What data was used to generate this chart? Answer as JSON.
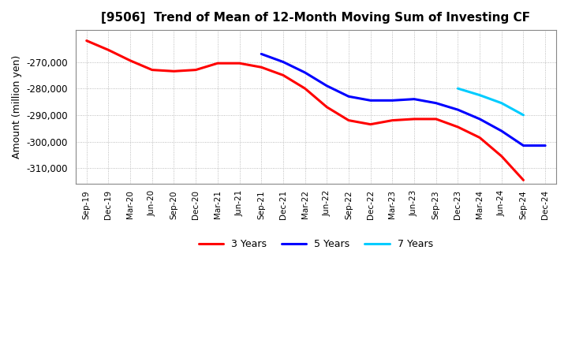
{
  "title": "[9506]  Trend of Mean of 12-Month Moving Sum of Investing CF",
  "ylabel": "Amount (million yen)",
  "background_color": "#ffffff",
  "plot_bg_color": "#ffffff",
  "grid_color": "#aaaaaa",
  "ylim": [
    -316000,
    -258000
  ],
  "yticks": [
    -310000,
    -300000,
    -290000,
    -280000,
    -270000
  ],
  "x_labels": [
    "Sep-19",
    "Dec-19",
    "Mar-20",
    "Jun-20",
    "Sep-20",
    "Dec-20",
    "Mar-21",
    "Jun-21",
    "Sep-21",
    "Dec-21",
    "Mar-22",
    "Jun-22",
    "Sep-22",
    "Dec-22",
    "Mar-23",
    "Jun-23",
    "Sep-23",
    "Dec-23",
    "Mar-24",
    "Jun-24",
    "Sep-24",
    "Dec-24"
  ],
  "series": {
    "3 Years": {
      "color": "#ff0000",
      "data": [
        [
          "Sep-19",
          -262000
        ],
        [
          "Dec-19",
          -265500
        ],
        [
          "Mar-20",
          -269500
        ],
        [
          "Jun-20",
          -273000
        ],
        [
          "Sep-20",
          -273500
        ],
        [
          "Dec-20",
          -273000
        ],
        [
          "Mar-21",
          -270500
        ],
        [
          "Jun-21",
          -270500
        ],
        [
          "Sep-21",
          -272000
        ],
        [
          "Dec-21",
          -275000
        ],
        [
          "Mar-22",
          -280000
        ],
        [
          "Jun-22",
          -287000
        ],
        [
          "Sep-22",
          -292000
        ],
        [
          "Dec-22",
          -293500
        ],
        [
          "Mar-23",
          -292000
        ],
        [
          "Jun-23",
          -291500
        ],
        [
          "Sep-23",
          -291500
        ],
        [
          "Dec-23",
          -294500
        ],
        [
          "Mar-24",
          -298500
        ],
        [
          "Jun-24",
          -305500
        ],
        [
          "Sep-24",
          -314500
        ],
        [
          "Dec-24",
          null
        ]
      ]
    },
    "5 Years": {
      "color": "#0000ff",
      "data": [
        [
          "Sep-19",
          null
        ],
        [
          "Dec-19",
          null
        ],
        [
          "Mar-20",
          null
        ],
        [
          "Jun-20",
          null
        ],
        [
          "Sep-20",
          null
        ],
        [
          "Dec-20",
          null
        ],
        [
          "Mar-21",
          null
        ],
        [
          "Jun-21",
          null
        ],
        [
          "Sep-21",
          -267000
        ],
        [
          "Dec-21",
          -270000
        ],
        [
          "Mar-22",
          -274000
        ],
        [
          "Jun-22",
          -279000
        ],
        [
          "Sep-22",
          -283000
        ],
        [
          "Dec-22",
          -284500
        ],
        [
          "Mar-23",
          -284500
        ],
        [
          "Jun-23",
          -284000
        ],
        [
          "Sep-23",
          -285500
        ],
        [
          "Dec-23",
          -288000
        ],
        [
          "Mar-24",
          -291500
        ],
        [
          "Jun-24",
          -296000
        ],
        [
          "Sep-24",
          -301500
        ],
        [
          "Dec-24",
          -301500
        ]
      ]
    },
    "7 Years": {
      "color": "#00ccff",
      "data": [
        [
          "Sep-19",
          null
        ],
        [
          "Dec-19",
          null
        ],
        [
          "Mar-20",
          null
        ],
        [
          "Jun-20",
          null
        ],
        [
          "Sep-20",
          null
        ],
        [
          "Dec-20",
          null
        ],
        [
          "Mar-21",
          null
        ],
        [
          "Jun-21",
          null
        ],
        [
          "Sep-21",
          null
        ],
        [
          "Dec-21",
          null
        ],
        [
          "Mar-22",
          null
        ],
        [
          "Jun-22",
          null
        ],
        [
          "Sep-22",
          null
        ],
        [
          "Dec-22",
          null
        ],
        [
          "Mar-23",
          null
        ],
        [
          "Jun-23",
          null
        ],
        [
          "Sep-23",
          null
        ],
        [
          "Dec-23",
          -280000
        ],
        [
          "Mar-24",
          -282500
        ],
        [
          "Jun-24",
          -285500
        ],
        [
          "Sep-24",
          -290000
        ],
        [
          "Dec-24",
          null
        ]
      ]
    },
    "10 Years": {
      "color": "#008000",
      "data": [
        [
          "Sep-19",
          null
        ],
        [
          "Dec-19",
          null
        ],
        [
          "Mar-20",
          null
        ],
        [
          "Jun-20",
          null
        ],
        [
          "Sep-20",
          null
        ],
        [
          "Dec-20",
          null
        ],
        [
          "Mar-21",
          null
        ],
        [
          "Jun-21",
          null
        ],
        [
          "Sep-21",
          null
        ],
        [
          "Dec-21",
          null
        ],
        [
          "Mar-22",
          null
        ],
        [
          "Jun-22",
          null
        ],
        [
          "Sep-22",
          null
        ],
        [
          "Dec-22",
          null
        ],
        [
          "Mar-23",
          null
        ],
        [
          "Jun-23",
          null
        ],
        [
          "Sep-23",
          null
        ],
        [
          "Dec-23",
          null
        ],
        [
          "Mar-24",
          null
        ],
        [
          "Jun-24",
          null
        ],
        [
          "Sep-24",
          null
        ],
        [
          "Dec-24",
          null
        ]
      ]
    }
  }
}
